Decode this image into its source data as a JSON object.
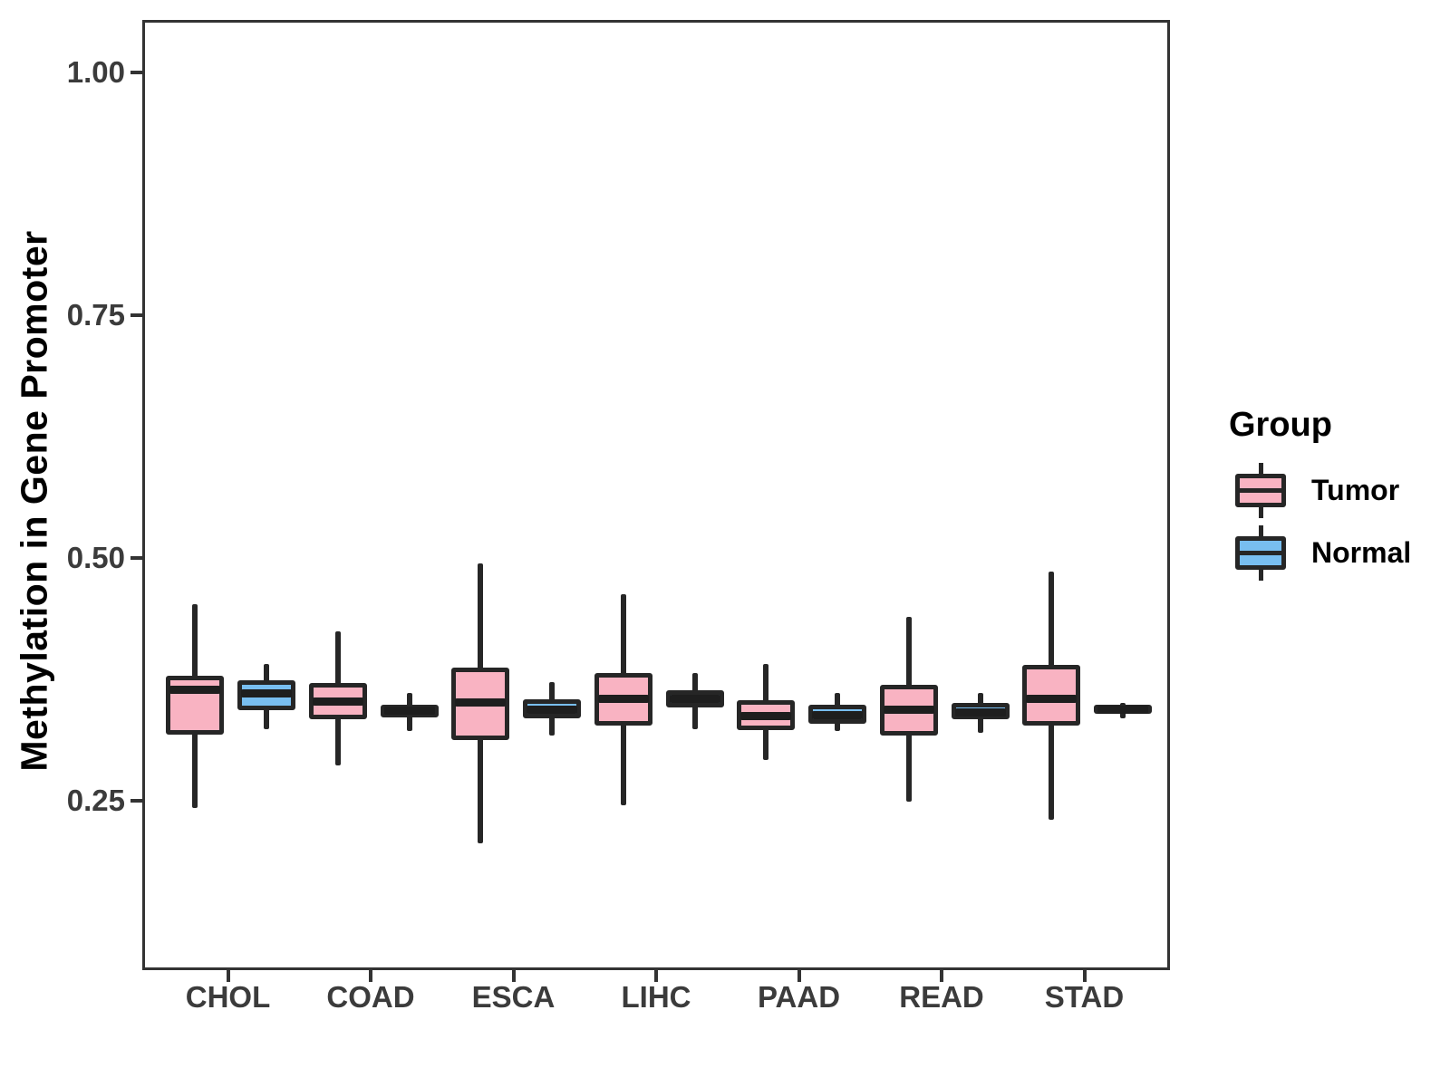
{
  "page": {
    "background": "#FFFFFF"
  },
  "y_axis": {
    "title": "Methylation in Gene Promoter",
    "ticks": [
      {
        "label": "1.00",
        "value": 1.0
      },
      {
        "label": "0.75",
        "value": 0.75
      },
      {
        "label": "0.50",
        "value": 0.5
      },
      {
        "label": "0.25",
        "value": 0.25
      }
    ]
  },
  "x_axis": {
    "categories": [
      "CHOL",
      "COAD",
      "ESCA",
      "LIHC",
      "PAAD",
      "READ",
      "STAD"
    ]
  },
  "legend": {
    "title": "Group",
    "items": [
      {
        "label": "Tumor",
        "color": "#F9B3C2"
      },
      {
        "label": "Normal",
        "color": "#78BEF0"
      }
    ]
  },
  "chart_data": {
    "type": "boxplot",
    "title": "",
    "xlabel": "",
    "ylabel": "Methylation in Gene Promoter",
    "categories": [
      "CHOL",
      "COAD",
      "ESCA",
      "LIHC",
      "PAAD",
      "READ",
      "STAD"
    ],
    "yticks": [
      0.25,
      0.5,
      0.75,
      1.0
    ],
    "ylim_visible": [
      0.0755,
      1.0545
    ],
    "grid": false,
    "legend_position": "right",
    "series": [
      {
        "name": "Tumor",
        "color": "#F9B3C2",
        "boxes": [
          {
            "category": "CHOL",
            "min": 0.245,
            "q1": 0.321,
            "median": 0.367,
            "q3": 0.382,
            "max": 0.455
          },
          {
            "category": "COAD",
            "min": 0.289,
            "q1": 0.337,
            "median": 0.355,
            "q3": 0.374,
            "max": 0.427
          },
          {
            "category": "ESCA",
            "min": 0.209,
            "q1": 0.315,
            "median": 0.354,
            "q3": 0.39,
            "max": 0.497
          },
          {
            "category": "LIHC",
            "min": 0.248,
            "q1": 0.33,
            "median": 0.358,
            "q3": 0.384,
            "max": 0.466
          },
          {
            "category": "PAAD",
            "min": 0.295,
            "q1": 0.326,
            "median": 0.34,
            "q3": 0.356,
            "max": 0.394
          },
          {
            "category": "READ",
            "min": 0.252,
            "q1": 0.32,
            "median": 0.347,
            "q3": 0.372,
            "max": 0.442
          },
          {
            "category": "STAD",
            "min": 0.233,
            "q1": 0.33,
            "median": 0.358,
            "q3": 0.393,
            "max": 0.489
          }
        ]
      },
      {
        "name": "Normal",
        "color": "#78BEF0",
        "boxes": [
          {
            "category": "CHOL",
            "min": 0.327,
            "q1": 0.346,
            "median": 0.363,
            "q3": 0.377,
            "max": 0.394
          },
          {
            "category": "COAD",
            "min": 0.325,
            "q1": 0.339,
            "median": 0.346,
            "q3": 0.352,
            "max": 0.364
          },
          {
            "category": "ESCA",
            "min": 0.32,
            "q1": 0.338,
            "median": 0.347,
            "q3": 0.357,
            "max": 0.375
          },
          {
            "category": "LIHC",
            "min": 0.327,
            "q1": 0.349,
            "median": 0.358,
            "q3": 0.367,
            "max": 0.384
          },
          {
            "category": "PAAD",
            "min": 0.325,
            "q1": 0.332,
            "median": 0.341,
            "q3": 0.352,
            "max": 0.364
          },
          {
            "category": "READ",
            "min": 0.323,
            "q1": 0.337,
            "median": 0.344,
            "q3": 0.354,
            "max": 0.364
          },
          {
            "category": "STAD",
            "min": 0.338,
            "q1": 0.342,
            "median": 0.347,
            "q3": 0.352,
            "max": 0.354
          }
        ]
      }
    ],
    "style": {
      "box_border_color": "#262626",
      "median_color": "#1E1E1E",
      "whisker_color": "#262626",
      "axis_color": "#333333",
      "tick_label_color": "#3B3B3B",
      "axis_title_color": "#000000"
    }
  }
}
